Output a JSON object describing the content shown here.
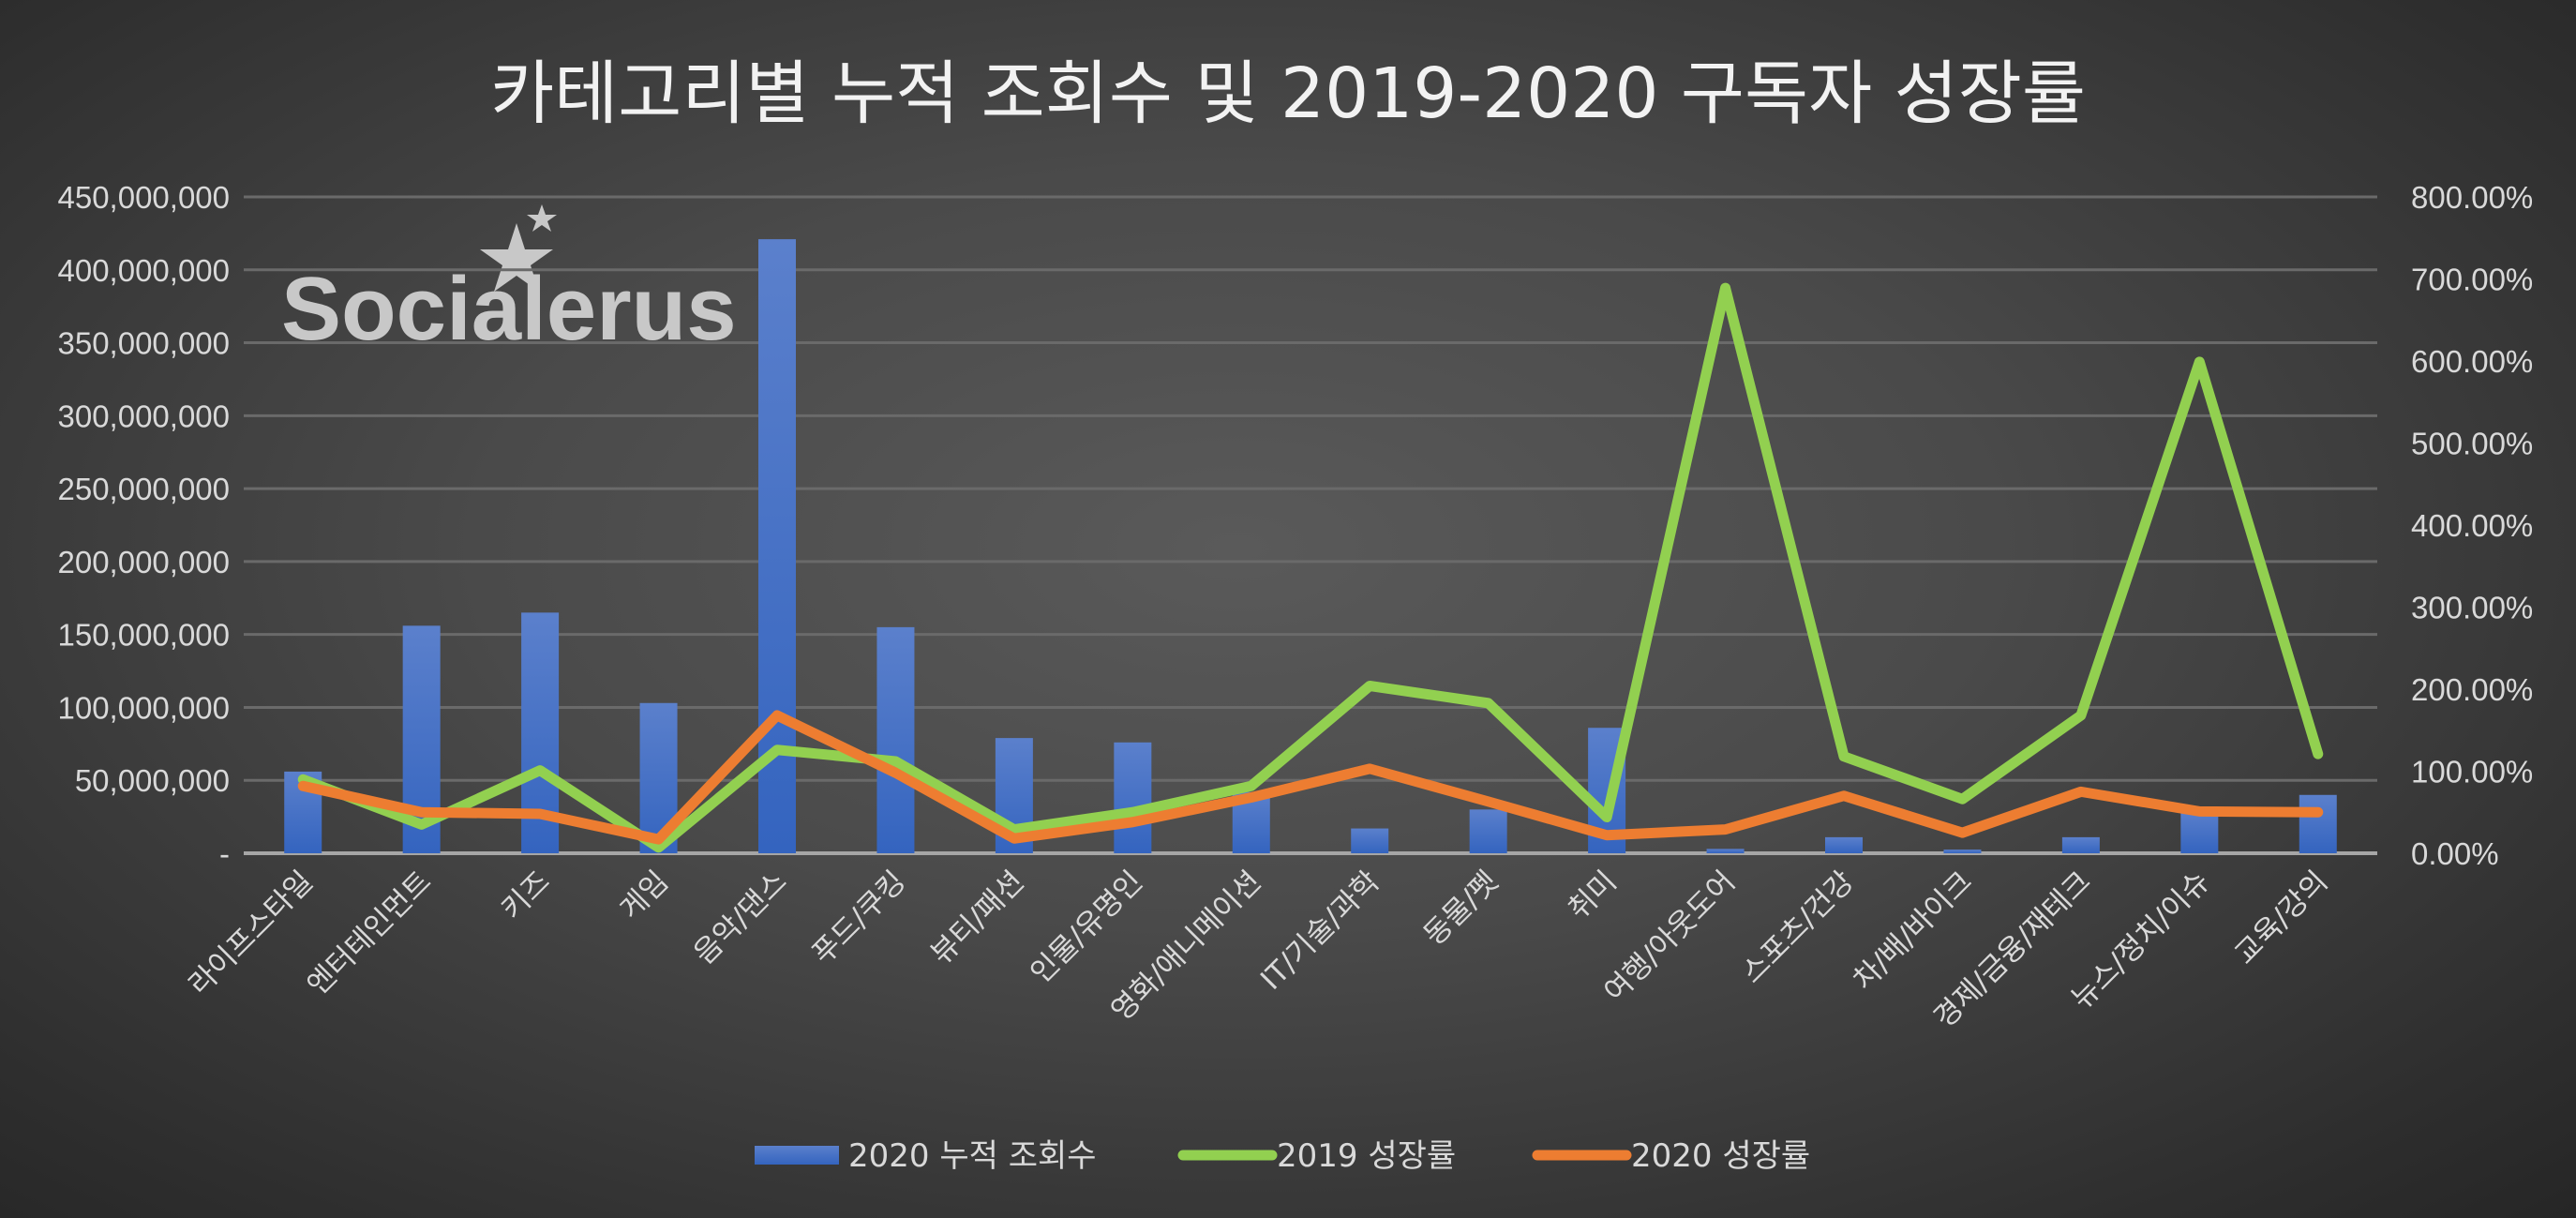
{
  "chart_data": {
    "type": "bar+line",
    "title": "카테고리별 누적 조회수 및 2019-2020 구독자 성장률",
    "categories": [
      "라이프스타일",
      "엔터테인먼트",
      "키즈",
      "게임",
      "음악/댄스",
      "푸드/쿠킹",
      "뷰티/패션",
      "인물/유명인",
      "영화/애니메이션",
      "IT/기술/과학",
      "동물/펫",
      "취미",
      "여행/아웃도어",
      "스포츠/건강",
      "차/배/바이크",
      "경제/금융/재테크",
      "뉴스/정치/이슈",
      "교육/강의"
    ],
    "series": [
      {
        "name": "2020 누적 조회수",
        "type": "bar",
        "axis": "left",
        "color": "#4472C4",
        "values": [
          56000000,
          156000000,
          165000000,
          103000000,
          421000000,
          155000000,
          79000000,
          76000000,
          42000000,
          17000000,
          30000000,
          86000000,
          3000000,
          11000000,
          2500000,
          11000000,
          29000000,
          40000000
        ]
      },
      {
        "name": "2019 성장률",
        "type": "line",
        "axis": "right",
        "color": "#92D050",
        "values": [
          90,
          35,
          101,
          7,
          126,
          112,
          29,
          50,
          82,
          204,
          183,
          44,
          689,
          118,
          66,
          168,
          599,
          121
        ]
      },
      {
        "name": "2020 성장률",
        "type": "line",
        "axis": "right",
        "color": "#ED7D31",
        "values": [
          82,
          50,
          48,
          17,
          168,
          98,
          18,
          38,
          68,
          103,
          63,
          22,
          29,
          70,
          25,
          75,
          51,
          50
        ]
      }
    ],
    "left_axis": {
      "min": 0,
      "max": 450000000,
      "step": 50000000,
      "tick_labels": [
        "-",
        "50,000,000",
        "100,000,000",
        "150,000,000",
        "200,000,000",
        "250,000,000",
        "300,000,000",
        "350,000,000",
        "400,000,000",
        "450,000,000"
      ]
    },
    "right_axis": {
      "min": 0,
      "max": 800,
      "step": 100,
      "tick_labels": [
        "0.00%",
        "100.00%",
        "200.00%",
        "300.00%",
        "400.00%",
        "500.00%",
        "600.00%",
        "700.00%",
        "800.00%"
      ]
    },
    "grid": true,
    "legend_position": "bottom",
    "logo_text": "Socialerus"
  }
}
